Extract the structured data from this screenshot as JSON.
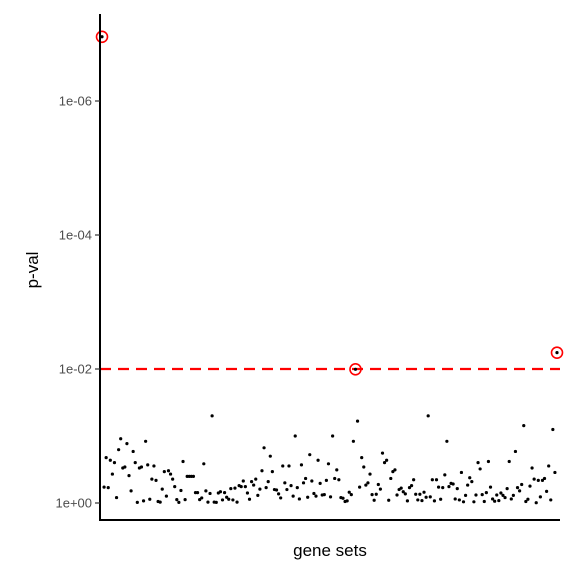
{
  "chart_data": {
    "type": "scatter",
    "title": "",
    "xlabel": "gene sets",
    "ylabel": "p-val",
    "y_scale": "log10, reversed (smaller p-values toward top)",
    "y_ticks": [
      {
        "value": 1,
        "label": "1e+00"
      },
      {
        "value": 0.01,
        "label": "1e-02"
      },
      {
        "value": 0.0001,
        "label": "1e-04"
      },
      {
        "value": 1e-06,
        "label": "1e-06"
      }
    ],
    "x_ticks": [],
    "threshold": {
      "value": 0.01,
      "style": "dashed",
      "color": "#ff0000"
    },
    "highlight_color": "#ff0000",
    "point_color": "#000000",
    "grid": false,
    "legend": "none",
    "highlighted_points": [
      {
        "x": 1,
        "y": 1.1e-07
      },
      {
        "x": 123,
        "y": 0.0101
      },
      {
        "x": 220,
        "y": 0.0057
      }
    ],
    "points": [
      {
        "x": 1,
        "y": 1.1e-07
      },
      {
        "x": 2,
        "y": 0.58
      },
      {
        "x": 3,
        "y": 0.21
      },
      {
        "x": 4,
        "y": 0.59
      },
      {
        "x": 5,
        "y": 0.23
      },
      {
        "x": 6,
        "y": 0.37
      },
      {
        "x": 7,
        "y": 0.25
      },
      {
        "x": 8,
        "y": 0.83
      },
      {
        "x": 9,
        "y": 0.16
      },
      {
        "x": 10,
        "y": 0.11
      },
      {
        "x": 11,
        "y": 0.3
      },
      {
        "x": 12,
        "y": 0.29
      },
      {
        "x": 13,
        "y": 0.13
      },
      {
        "x": 14,
        "y": 0.39
      },
      {
        "x": 15,
        "y": 0.66
      },
      {
        "x": 16,
        "y": 0.17
      },
      {
        "x": 17,
        "y": 0.25
      },
      {
        "x": 18,
        "y": 0.98
      },
      {
        "x": 19,
        "y": 0.3
      },
      {
        "x": 20,
        "y": 0.29
      },
      {
        "x": 21,
        "y": 0.93
      },
      {
        "x": 22,
        "y": 0.12
      },
      {
        "x": 23,
        "y": 0.27
      },
      {
        "x": 24,
        "y": 0.88
      },
      {
        "x": 25,
        "y": 0.44
      },
      {
        "x": 26,
        "y": 0.28
      },
      {
        "x": 27,
        "y": 0.46
      },
      {
        "x": 28,
        "y": 0.95
      },
      {
        "x": 29,
        "y": 0.97
      },
      {
        "x": 30,
        "y": 0.62
      },
      {
        "x": 31,
        "y": 0.34
      },
      {
        "x": 32,
        "y": 0.79
      },
      {
        "x": 33,
        "y": 0.33
      },
      {
        "x": 34,
        "y": 0.37
      },
      {
        "x": 35,
        "y": 0.44
      },
      {
        "x": 36,
        "y": 0.57
      },
      {
        "x": 37,
        "y": 0.89
      },
      {
        "x": 38,
        "y": 0.98
      },
      {
        "x": 39,
        "y": 0.65
      },
      {
        "x": 40,
        "y": 0.24
      },
      {
        "x": 41,
        "y": 0.89
      },
      {
        "x": 42,
        "y": 0.4
      },
      {
        "x": 43,
        "y": 0.4
      },
      {
        "x": 44,
        "y": 0.4
      },
      {
        "x": 45,
        "y": 0.4
      },
      {
        "x": 46,
        "y": 0.7
      },
      {
        "x": 47,
        "y": 0.7
      },
      {
        "x": 48,
        "y": 0.89
      },
      {
        "x": 49,
        "y": 0.84
      },
      {
        "x": 50,
        "y": 0.26
      },
      {
        "x": 51,
        "y": 0.66
      },
      {
        "x": 52,
        "y": 0.97
      },
      {
        "x": 53,
        "y": 0.72
      },
      {
        "x": 54,
        "y": 0.05
      },
      {
        "x": 55,
        "y": 0.97
      },
      {
        "x": 56,
        "y": 0.98
      },
      {
        "x": 57,
        "y": 0.71
      },
      {
        "x": 58,
        "y": 0.68
      },
      {
        "x": 59,
        "y": 0.9
      },
      {
        "x": 60,
        "y": 0.7
      },
      {
        "x": 61,
        "y": 0.82
      },
      {
        "x": 62,
        "y": 0.88
      },
      {
        "x": 63,
        "y": 0.61
      },
      {
        "x": 64,
        "y": 0.9
      },
      {
        "x": 65,
        "y": 0.6
      },
      {
        "x": 66,
        "y": 0.97
      },
      {
        "x": 67,
        "y": 0.55
      },
      {
        "x": 68,
        "y": 0.57
      },
      {
        "x": 69,
        "y": 0.47
      },
      {
        "x": 70,
        "y": 0.57
      },
      {
        "x": 71,
        "y": 0.71
      },
      {
        "x": 72,
        "y": 0.88
      },
      {
        "x": 73,
        "y": 0.48
      },
      {
        "x": 74,
        "y": 0.54
      },
      {
        "x": 75,
        "y": 0.44
      },
      {
        "x": 76,
        "y": 0.77
      },
      {
        "x": 77,
        "y": 0.62
      },
      {
        "x": 78,
        "y": 0.33
      },
      {
        "x": 79,
        "y": 0.15
      },
      {
        "x": 80,
        "y": 0.59
      },
      {
        "x": 81,
        "y": 0.48
      },
      {
        "x": 82,
        "y": 0.2
      },
      {
        "x": 83,
        "y": 0.34
      },
      {
        "x": 84,
        "y": 0.63
      },
      {
        "x": 85,
        "y": 0.64
      },
      {
        "x": 86,
        "y": 0.73
      },
      {
        "x": 87,
        "y": 0.84
      },
      {
        "x": 88,
        "y": 0.28
      },
      {
        "x": 89,
        "y": 0.5
      },
      {
        "x": 90,
        "y": 0.63
      },
      {
        "x": 91,
        "y": 0.28
      },
      {
        "x": 92,
        "y": 0.55
      },
      {
        "x": 93,
        "y": 0.79
      },
      {
        "x": 94,
        "y": 0.1
      },
      {
        "x": 95,
        "y": 0.59
      },
      {
        "x": 96,
        "y": 0.87
      },
      {
        "x": 97,
        "y": 0.27
      },
      {
        "x": 98,
        "y": 0.5
      },
      {
        "x": 99,
        "y": 0.43
      },
      {
        "x": 100,
        "y": 0.82
      },
      {
        "x": 101,
        "y": 0.19
      },
      {
        "x": 102,
        "y": 0.47
      },
      {
        "x": 103,
        "y": 0.72
      },
      {
        "x": 104,
        "y": 0.79
      },
      {
        "x": 105,
        "y": 0.23
      },
      {
        "x": 106,
        "y": 0.51
      },
      {
        "x": 107,
        "y": 0.76
      },
      {
        "x": 108,
        "y": 0.75
      },
      {
        "x": 109,
        "y": 0.46
      },
      {
        "x": 110,
        "y": 0.26
      },
      {
        "x": 111,
        "y": 0.81
      },
      {
        "x": 112,
        "y": 0.1
      },
      {
        "x": 113,
        "y": 0.43
      },
      {
        "x": 114,
        "y": 0.32
      },
      {
        "x": 115,
        "y": 0.45
      },
      {
        "x": 116,
        "y": 0.83
      },
      {
        "x": 117,
        "y": 0.85
      },
      {
        "x": 118,
        "y": 0.95
      },
      {
        "x": 119,
        "y": 0.93
      },
      {
        "x": 120,
        "y": 0.69
      },
      {
        "x": 121,
        "y": 0.75
      },
      {
        "x": 122,
        "y": 0.12
      },
      {
        "x": 123,
        "y": 0.0101
      },
      {
        "x": 124,
        "y": 0.06
      },
      {
        "x": 125,
        "y": 0.58
      },
      {
        "x": 126,
        "y": 0.21
      },
      {
        "x": 127,
        "y": 0.29
      },
      {
        "x": 128,
        "y": 0.54
      },
      {
        "x": 129,
        "y": 0.5
      },
      {
        "x": 130,
        "y": 0.37
      },
      {
        "x": 131,
        "y": 0.75
      },
      {
        "x": 132,
        "y": 0.91
      },
      {
        "x": 133,
        "y": 0.74
      },
      {
        "x": 134,
        "y": 0.53
      },
      {
        "x": 135,
        "y": 0.62
      },
      {
        "x": 136,
        "y": 0.18
      },
      {
        "x": 137,
        "y": 0.25
      },
      {
        "x": 138,
        "y": 0.23
      },
      {
        "x": 139,
        "y": 0.91
      },
      {
        "x": 140,
        "y": 0.43
      },
      {
        "x": 141,
        "y": 0.34
      },
      {
        "x": 142,
        "y": 0.32
      },
      {
        "x": 143,
        "y": 0.76
      },
      {
        "x": 144,
        "y": 0.63
      },
      {
        "x": 145,
        "y": 0.6
      },
      {
        "x": 146,
        "y": 0.68
      },
      {
        "x": 147,
        "y": 0.73
      },
      {
        "x": 148,
        "y": 0.93
      },
      {
        "x": 149,
        "y": 0.59
      },
      {
        "x": 150,
        "y": 0.55
      },
      {
        "x": 151,
        "y": 0.45
      },
      {
        "x": 152,
        "y": 0.74
      },
      {
        "x": 153,
        "y": 0.9
      },
      {
        "x": 154,
        "y": 0.74
      },
      {
        "x": 155,
        "y": 0.92
      },
      {
        "x": 156,
        "y": 0.69
      },
      {
        "x": 157,
        "y": 0.82
      },
      {
        "x": 158,
        "y": 0.05
      },
      {
        "x": 159,
        "y": 0.81
      },
      {
        "x": 160,
        "y": 0.45
      },
      {
        "x": 161,
        "y": 0.93
      },
      {
        "x": 162,
        "y": 0.45
      },
      {
        "x": 163,
        "y": 0.58
      },
      {
        "x": 164,
        "y": 0.88
      },
      {
        "x": 165,
        "y": 0.59
      },
      {
        "x": 166,
        "y": 0.38
      },
      {
        "x": 167,
        "y": 0.12
      },
      {
        "x": 168,
        "y": 0.57
      },
      {
        "x": 169,
        "y": 0.51
      },
      {
        "x": 170,
        "y": 0.52
      },
      {
        "x": 171,
        "y": 0.87
      },
      {
        "x": 172,
        "y": 0.61
      },
      {
        "x": 173,
        "y": 0.9
      },
      {
        "x": 174,
        "y": 0.35
      },
      {
        "x": 175,
        "y": 0.96
      },
      {
        "x": 176,
        "y": 0.77
      },
      {
        "x": 177,
        "y": 0.54
      },
      {
        "x": 178,
        "y": 0.42
      },
      {
        "x": 179,
        "y": 0.48
      },
      {
        "x": 180,
        "y": 0.96
      },
      {
        "x": 181,
        "y": 0.76
      },
      {
        "x": 182,
        "y": 0.25
      },
      {
        "x": 183,
        "y": 0.31
      },
      {
        "x": 184,
        "y": 0.75
      },
      {
        "x": 185,
        "y": 0.95
      },
      {
        "x": 186,
        "y": 0.7
      },
      {
        "x": 187,
        "y": 0.24
      },
      {
        "x": 188,
        "y": 0.58
      },
      {
        "x": 189,
        "y": 0.87
      },
      {
        "x": 190,
        "y": 0.94
      },
      {
        "x": 191,
        "y": 0.76
      },
      {
        "x": 192,
        "y": 0.92
      },
      {
        "x": 193,
        "y": 0.71
      },
      {
        "x": 194,
        "y": 0.77
      },
      {
        "x": 195,
        "y": 0.83
      },
      {
        "x": 196,
        "y": 0.61
      },
      {
        "x": 197,
        "y": 0.24
      },
      {
        "x": 198,
        "y": 0.87
      },
      {
        "x": 199,
        "y": 0.77
      },
      {
        "x": 200,
        "y": 0.17
      },
      {
        "x": 201,
        "y": 0.59
      },
      {
        "x": 202,
        "y": 0.66
      },
      {
        "x": 203,
        "y": 0.53
      },
      {
        "x": 204,
        "y": 0.07
      },
      {
        "x": 205,
        "y": 0.95
      },
      {
        "x": 206,
        "y": 0.88
      },
      {
        "x": 207,
        "y": 0.56
      },
      {
        "x": 208,
        "y": 0.3
      },
      {
        "x": 209,
        "y": 0.44
      },
      {
        "x": 210,
        "y": 0.99
      },
      {
        "x": 211,
        "y": 0.46
      },
      {
        "x": 212,
        "y": 0.81
      },
      {
        "x": 213,
        "y": 0.46
      },
      {
        "x": 214,
        "y": 0.43
      },
      {
        "x": 215,
        "y": 0.67
      },
      {
        "x": 216,
        "y": 0.28
      },
      {
        "x": 217,
        "y": 0.9
      },
      {
        "x": 218,
        "y": 0.08
      },
      {
        "x": 219,
        "y": 0.35
      },
      {
        "x": 220,
        "y": 0.0057
      }
    ]
  }
}
